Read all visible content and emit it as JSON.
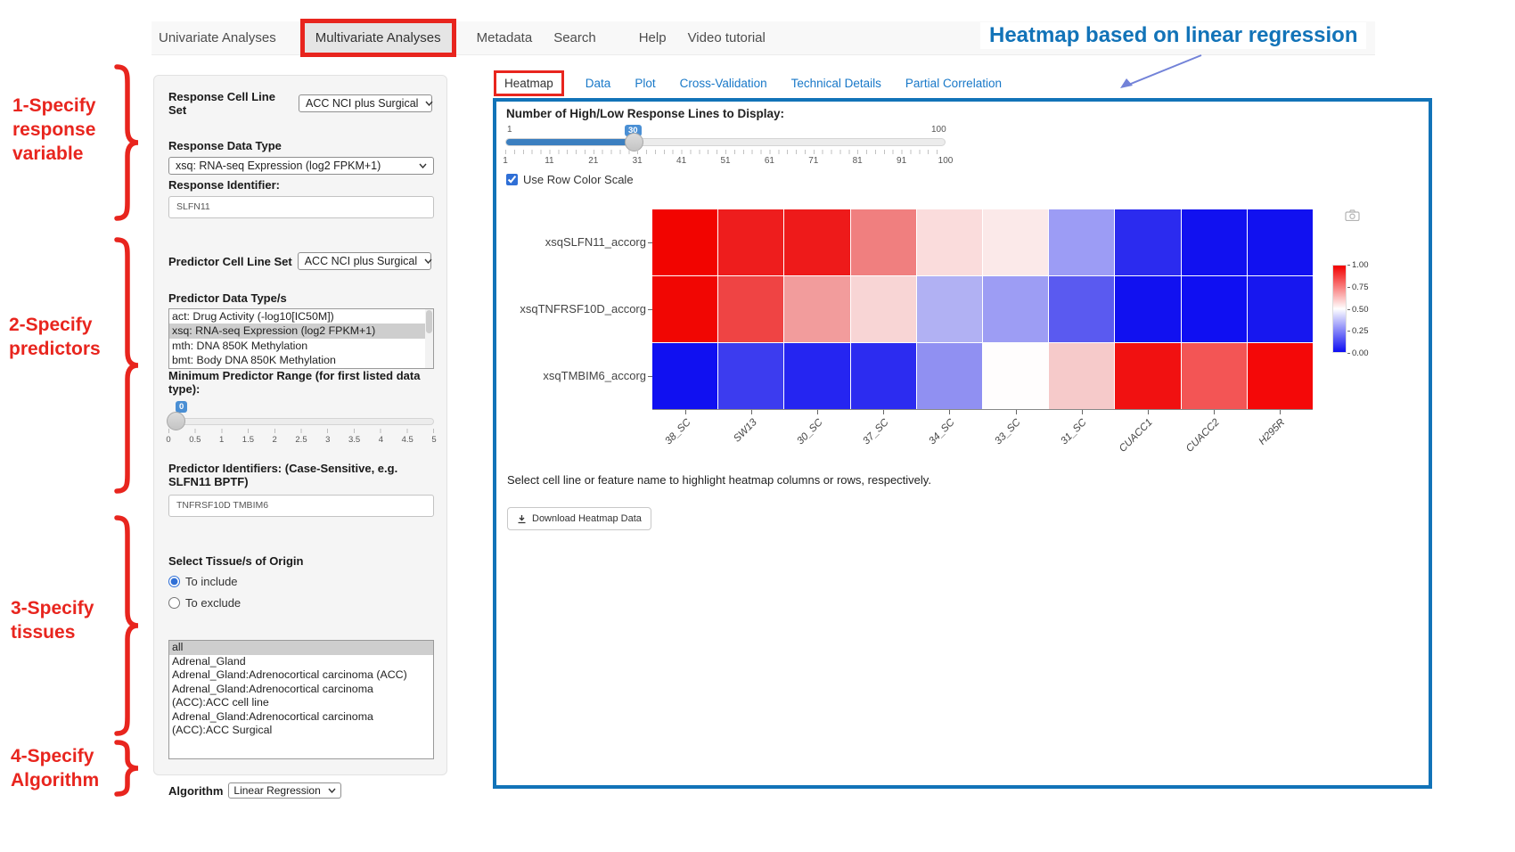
{
  "annotations": {
    "heading": "Heatmap based on linear regression",
    "steps": [
      {
        "label": "1-Specify\nresponse\nvariable"
      },
      {
        "label": "2-Specify\npredictors"
      },
      {
        "label": "3-Specify\ntissues"
      },
      {
        "label": "4-Specify\nAlgorithm"
      }
    ],
    "accent_red": "#e8251e",
    "accent_blue": "#1273b8"
  },
  "nav": {
    "items": [
      "Univariate Analyses",
      "Multivariate Analyses",
      "Metadata",
      "Search",
      "Help",
      "Video tutorial"
    ],
    "active": "Multivariate Analyses"
  },
  "sidebar": {
    "response_cell_line_set": {
      "label": "Response Cell Line Set",
      "value": "ACC NCI plus Surgical"
    },
    "response_data_type": {
      "label": "Response Data Type",
      "value": "xsq: RNA-seq Expression (log2 FPKM+1)"
    },
    "response_identifier": {
      "label": "Response Identifier:",
      "value": "SLFN11"
    },
    "predictor_cell_line_set": {
      "label": "Predictor Cell Line Set",
      "value": "ACC NCI plus Surgical"
    },
    "predictor_data_types": {
      "label": "Predictor Data Type/s",
      "options": [
        "act: Drug Activity (-log10[IC50M])",
        "xsq: RNA-seq Expression (log2 FPKM+1)",
        "mth: DNA 850K Methylation",
        "bmt: Body DNA 850K Methylation"
      ],
      "selected": "xsq: RNA-seq Expression (log2 FPKM+1)"
    },
    "min_predictor_range": {
      "label": "Minimum Predictor Range (for first listed data type):",
      "value": "0",
      "ticks": [
        "0",
        "0.5",
        "1",
        "1.5",
        "2",
        "2.5",
        "3",
        "3.5",
        "4",
        "4.5",
        "5"
      ]
    },
    "predictor_identifiers": {
      "label": "Predictor Identifiers: (Case-Sensitive, e.g. SLFN11 BPTF)",
      "value": "TNFRSF10D TMBIM6"
    },
    "tissue": {
      "label": "Select Tissue/s of Origin",
      "include_label": "To include",
      "exclude_label": "To exclude",
      "mode": "include",
      "options": [
        "all",
        "Adrenal_Gland",
        "Adrenal_Gland:Adrenocortical carcinoma (ACC)",
        "Adrenal_Gland:Adrenocortical carcinoma (ACC):ACC cell line",
        "Adrenal_Gland:Adrenocortical carcinoma (ACC):ACC Surgical"
      ],
      "selected": "all"
    },
    "algorithm": {
      "label": "Algorithm",
      "value": "Linear Regression"
    }
  },
  "main": {
    "tabs": [
      "Heatmap",
      "Data",
      "Plot",
      "Cross-Validation",
      "Technical Details",
      "Partial Correlation"
    ],
    "active_tab": "Heatmap",
    "lines_slider": {
      "label": "Number of High/Low Response Lines to Display:",
      "min_label": "1",
      "max_label": "100",
      "value": "30",
      "ticks": [
        "1",
        "11",
        "21",
        "31",
        "41",
        "51",
        "61",
        "71",
        "81",
        "91",
        "100"
      ]
    },
    "row_color_scale": {
      "label": "Use Row Color Scale",
      "checked": true
    },
    "caption": "Select cell line or feature name to highlight heatmap columns or rows, respectively.",
    "download_button": "Download Heatmap Data",
    "chart_data": {
      "type": "heatmap",
      "rows": [
        "xsqSLFN11_accorg",
        "xsqTNFRSF10D_accorg",
        "xsqTMBIM6_accorg"
      ],
      "columns": [
        "38_SC",
        "SW13",
        "30_SC",
        "37_SC",
        "34_SC",
        "33_SC",
        "31_SC",
        "CUACC1",
        "CUACC2",
        "H295R"
      ],
      "cell_colors": [
        [
          "#f20400",
          "#ee1d1d",
          "#ee1a1a",
          "#f07f7f",
          "#fadcdc",
          "#fbe9e9",
          "#9c9cf5",
          "#2b2bef",
          "#1111f0",
          "#1111f0"
        ],
        [
          "#f10603",
          "#ef4444",
          "#f29c9c",
          "#f8d5d5",
          "#b1b1f3",
          "#9d9df4",
          "#5a5af0",
          "#1111f0",
          "#0f0ff2",
          "#1717ef"
        ],
        [
          "#1010f1",
          "#3c3cef",
          "#2525f1",
          "#2c2cf0",
          "#9090f2",
          "#fffdfd",
          "#f6caca",
          "#f11111",
          "#f35555",
          "#f40808"
        ]
      ],
      "values_norm": [
        [
          0.99,
          0.94,
          0.94,
          0.73,
          0.56,
          0.54,
          0.3,
          0.09,
          0.04,
          0.04
        ],
        [
          0.99,
          0.86,
          0.7,
          0.58,
          0.33,
          0.3,
          0.18,
          0.04,
          0.03,
          0.05
        ],
        [
          0.03,
          0.12,
          0.07,
          0.09,
          0.22,
          0.5,
          0.6,
          0.96,
          0.82,
          0.98
        ]
      ],
      "colorbar": {
        "ticks": [
          "1.00",
          "0.75",
          "0.50",
          "0.25",
          "0.00"
        ],
        "top_color": "#f20000",
        "mid_color": "#ffffff",
        "bottom_color": "#0d0df2"
      }
    }
  }
}
